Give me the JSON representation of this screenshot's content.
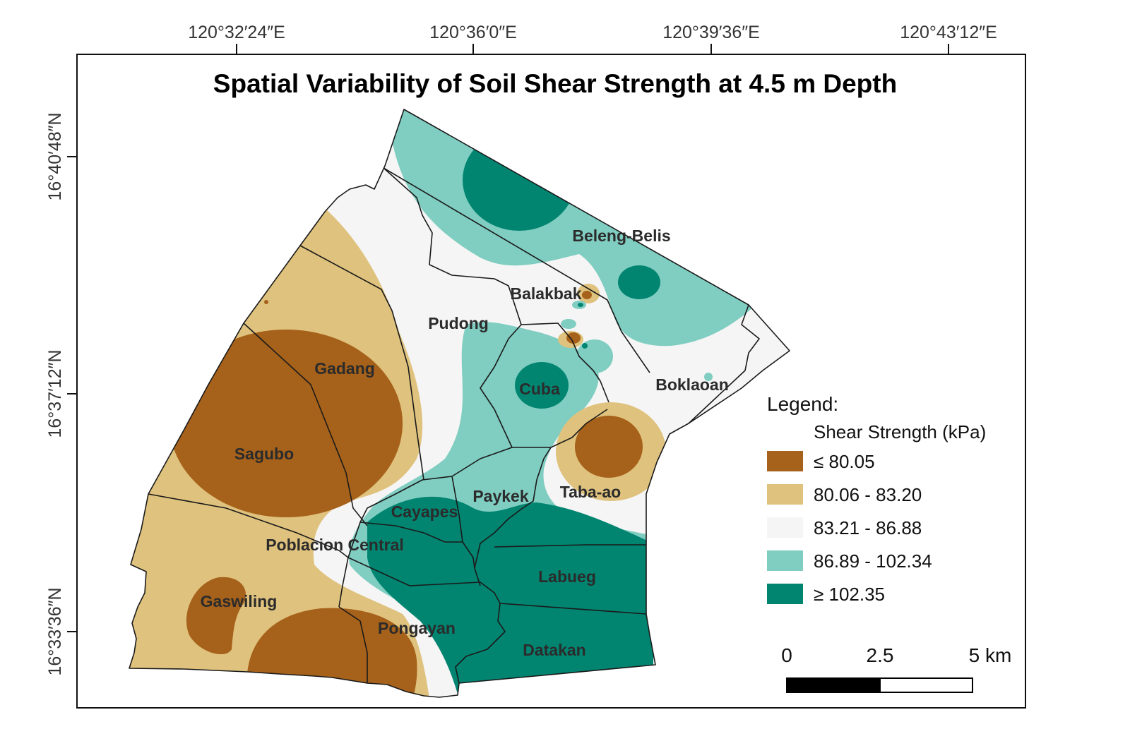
{
  "title": "Spatial Variability of Soil Shear Strength at 4.5 m Depth",
  "graticule": {
    "longitude_labels": [
      "120°32′24″E",
      "120°36′0″E",
      "120°39′36″E",
      "120°43′12″E"
    ],
    "latitude_labels": [
      "16°40′48″N",
      "16°37′12″N",
      "16°33′36″N"
    ]
  },
  "places": [
    "Beleng-Belis",
    "Balakbak",
    "Pudong",
    "Gadang",
    "Cuba",
    "Boklaoan",
    "Sagubo",
    "Taba-ao",
    "Paykek",
    "Cayapes",
    "Poblacion Central",
    "Labueg",
    "Gaswiling",
    "Pongayan",
    "Datakan"
  ],
  "legend": {
    "heading": "Legend:",
    "subheading": "Shear Strength (kPa)",
    "classes": [
      {
        "label": "≤ 80.05",
        "color": "#a6611a"
      },
      {
        "label": "80.06 - 83.20",
        "color": "#dfc27d"
      },
      {
        "label": "83.21 - 86.88",
        "color": "#f5f5f5"
      },
      {
        "label": "86.89 - 102.34",
        "color": "#80cdc1"
      },
      {
        "label": "≥ 102.35",
        "color": "#018571"
      }
    ]
  },
  "scale_bar": {
    "labels": [
      "0",
      "2.5",
      "5 km"
    ]
  }
}
